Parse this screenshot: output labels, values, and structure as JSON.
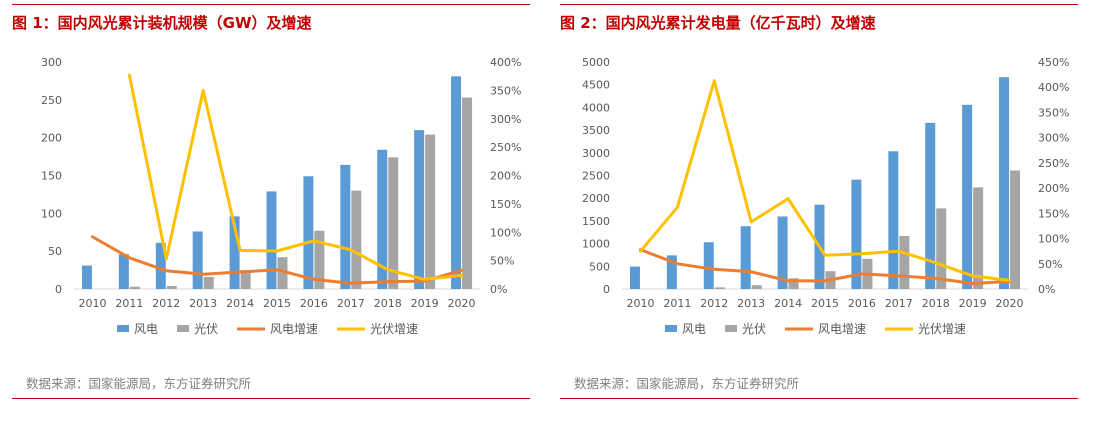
{
  "colors": {
    "wind": "#5b9bd5",
    "solar": "#a5a5a5",
    "wind_growth": "#ed7d31",
    "solar_growth": "#ffc000",
    "accent": "#c00000"
  },
  "panels": [
    {
      "title": "图 1：国内风光累计装机规模（GW）及增速",
      "source": "数据来源：国家能源局，东方证券研究所",
      "chart_data": {
        "type": "bar",
        "categories": [
          "2010",
          "2011",
          "2012",
          "2013",
          "2014",
          "2015",
          "2016",
          "2017",
          "2018",
          "2019",
          "2020"
        ],
        "series": [
          {
            "name": "风电",
            "kind": "bar",
            "axis": "left",
            "color": "#5b9bd5",
            "values": [
              31,
              46,
              61,
              76,
              96,
              129,
              149,
              164,
              184,
              210,
              281
            ]
          },
          {
            "name": "光伏",
            "kind": "bar",
            "axis": "left",
            "color": "#a5a5a5",
            "values": [
              null,
              3,
              4,
              16,
              25,
              42,
              77,
              130,
              174,
              204,
              253
            ]
          },
          {
            "name": "风电增速",
            "kind": "line",
            "axis": "right",
            "color": "#ed7d31",
            "values": [
              0.92,
              0.55,
              0.32,
              0.26,
              0.3,
              0.34,
              0.17,
              0.1,
              0.13,
              0.14,
              0.33
            ]
          },
          {
            "name": "光伏增速",
            "kind": "line",
            "axis": "right",
            "color": "#ffc000",
            "values": [
              null,
              3.77,
              0.53,
              3.5,
              0.68,
              0.67,
              0.85,
              0.69,
              0.34,
              0.17,
              0.24
            ]
          }
        ],
        "left_axis": {
          "min": 0,
          "max": 300,
          "ticks": [
            "0",
            "50",
            "100",
            "150",
            "200",
            "250",
            "300"
          ]
        },
        "right_axis": {
          "min": 0,
          "max": 4,
          "ticks": [
            "0%",
            "50%",
            "100%",
            "150%",
            "200%",
            "250%",
            "300%",
            "350%",
            "400%"
          ]
        },
        "legend": {
          "position": "bottom",
          "items": [
            "风电",
            "光伏",
            "风电增速",
            "光伏增速"
          ]
        },
        "grid": false
      }
    },
    {
      "title": "图 2：国内风光累计发电量（亿千瓦时）及增速",
      "source": "数据来源：国家能源局，东方证券研究所",
      "chart_data": {
        "type": "bar",
        "categories": [
          "2010",
          "2011",
          "2012",
          "2013",
          "2014",
          "2015",
          "2016",
          "2017",
          "2018",
          "2019",
          "2020"
        ],
        "series": [
          {
            "name": "风电",
            "kind": "bar",
            "axis": "left",
            "color": "#5b9bd5",
            "values": [
              494,
              741,
              1030,
              1383,
              1598,
              1856,
              2409,
              3034,
              3660,
              4057,
              4665
            ]
          },
          {
            "name": "光伏",
            "kind": "bar",
            "axis": "left",
            "color": "#a5a5a5",
            "values": [
              null,
              null,
              36,
              84,
              235,
              392,
              665,
              1166,
              1775,
              2238,
              2611
            ]
          },
          {
            "name": "风电增速",
            "kind": "line",
            "axis": "right",
            "color": "#ed7d31",
            "values": [
              0.78,
              0.5,
              0.39,
              0.34,
              0.16,
              0.16,
              0.3,
              0.26,
              0.21,
              0.11,
              0.15
            ]
          },
          {
            "name": "光伏增速",
            "kind": "line",
            "axis": "right",
            "color": "#ffc000",
            "values": [
              0.75,
              1.62,
              4.13,
              1.33,
              1.79,
              0.67,
              0.7,
              0.75,
              0.52,
              0.26,
              0.17
            ]
          }
        ],
        "left_axis": {
          "min": 0,
          "max": 5000,
          "ticks": [
            "0",
            "500",
            "1000",
            "1500",
            "2000",
            "2500",
            "3000",
            "3500",
            "4000",
            "4500",
            "5000"
          ]
        },
        "right_axis": {
          "min": 0,
          "max": 4.5,
          "ticks": [
            "0%",
            "50%",
            "100%",
            "150%",
            "200%",
            "250%",
            "300%",
            "350%",
            "400%",
            "450%"
          ]
        },
        "legend": {
          "position": "bottom",
          "items": [
            "风电",
            "光伏",
            "风电增速",
            "光伏增速"
          ]
        },
        "grid": false
      }
    }
  ]
}
